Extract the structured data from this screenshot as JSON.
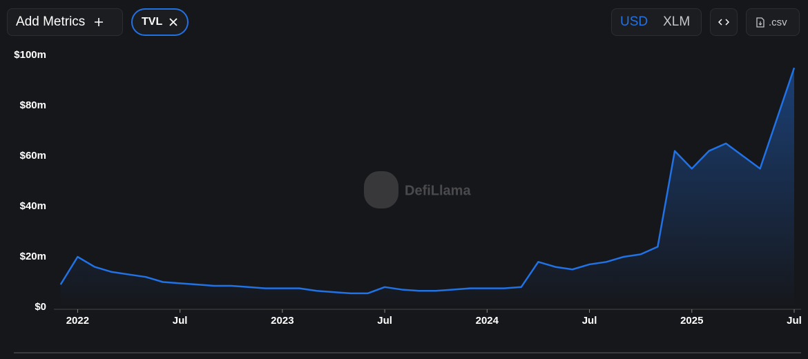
{
  "controls": {
    "add_metrics": "Add Metrics",
    "metric": "TVL",
    "currencies": [
      "USD",
      "XLM"
    ],
    "csv": ".csv"
  },
  "chart_data": {
    "type": "area",
    "watermark": "DefiLlama",
    "x": [
      "2021-12",
      "2022-01",
      "2022-02",
      "2022-03",
      "2022-04",
      "2022-05",
      "2022-06",
      "2022-07",
      "2022-08",
      "2022-09",
      "2022-10",
      "2022-11",
      "2022-12",
      "2023-01",
      "2023-02",
      "2023-03",
      "2023-04",
      "2023-05",
      "2023-06",
      "2023-07",
      "2023-08",
      "2023-09",
      "2023-10",
      "2023-11",
      "2023-12",
      "2024-01",
      "2024-02",
      "2024-03",
      "2024-04",
      "2024-05",
      "2024-06",
      "2024-07",
      "2024-08",
      "2024-09",
      "2024-10",
      "2024-11",
      "2024-12",
      "2025-01",
      "2025-02",
      "2025-03",
      "2025-04",
      "2025-05",
      "2025-06",
      "2025-07"
    ],
    "series": [
      {
        "name": "TVL",
        "color": "#2172e5",
        "values": [
          9,
          20,
          16,
          14,
          13,
          12,
          10,
          9.5,
          9,
          8.5,
          8.5,
          8,
          7.5,
          7.5,
          7.5,
          6.5,
          6,
          5.5,
          5.5,
          8,
          7,
          6.5,
          6.5,
          7,
          7.5,
          7.5,
          7.5,
          8,
          18,
          16,
          15,
          17,
          18,
          20,
          21,
          24,
          62,
          55,
          62,
          65,
          60,
          55,
          75,
          95
        ]
      }
    ],
    "xlim": [
      "2021-11",
      "2025-07"
    ],
    "xticks": [
      {
        "value": "2022-01",
        "label": "2022"
      },
      {
        "value": "2022-07",
        "label": "Jul"
      },
      {
        "value": "2023-01",
        "label": "2023"
      },
      {
        "value": "2023-07",
        "label": "Jul"
      },
      {
        "value": "2024-01",
        "label": "2024"
      },
      {
        "value": "2024-07",
        "label": "Jul"
      },
      {
        "value": "2025-01",
        "label": "2025"
      },
      {
        "value": "2025-07",
        "label": "Jul"
      }
    ],
    "ylim": [
      0,
      100
    ],
    "yticks": [
      {
        "value": 0,
        "label": "$0"
      },
      {
        "value": 20,
        "label": "$20m"
      },
      {
        "value": 40,
        "label": "$40m"
      },
      {
        "value": 60,
        "label": "$60m"
      },
      {
        "value": 80,
        "label": "$80m"
      },
      {
        "value": 100,
        "label": "$100m"
      }
    ]
  }
}
